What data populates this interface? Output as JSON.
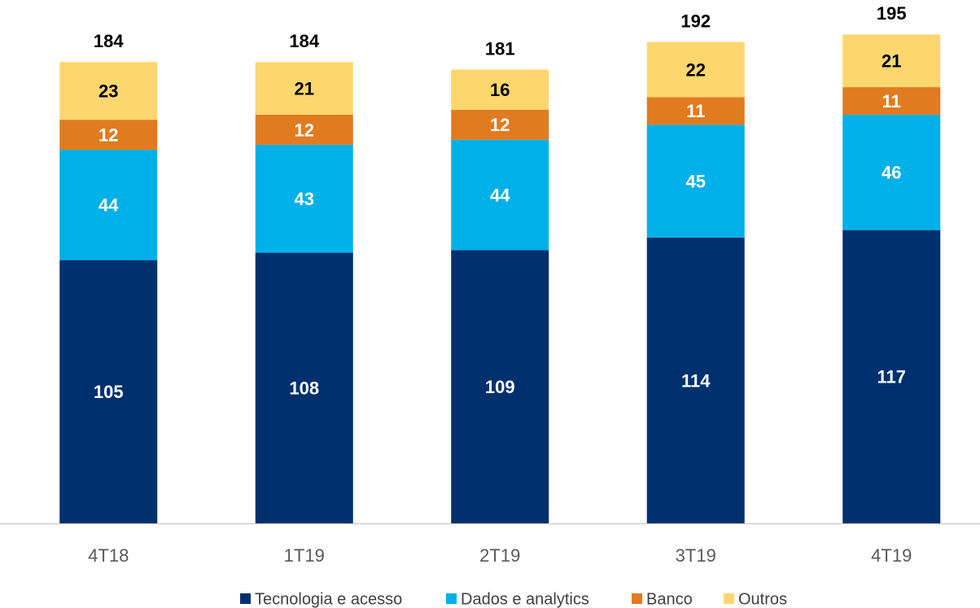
{
  "chart_data": {
    "type": "stacked_bar",
    "categories": [
      "4T18",
      "1T19",
      "2T19",
      "3T19",
      "4T19"
    ],
    "series": [
      {
        "name": "Tecnologia e acesso",
        "color": "#00306e",
        "values": [
          105,
          108,
          109,
          114,
          117
        ]
      },
      {
        "name": "Dados e analytics",
        "color": "#00b0e8",
        "values": [
          44,
          43,
          44,
          45,
          46
        ]
      },
      {
        "name": "Banco",
        "color": "#e07b20",
        "values": [
          12,
          12,
          12,
          11,
          11
        ]
      },
      {
        "name": "Outros",
        "color": "#fdd66e",
        "values": [
          23,
          21,
          16,
          22,
          21
        ]
      }
    ],
    "totals": [
      184,
      184,
      181,
      192,
      195
    ],
    "legend": "bottom"
  }
}
